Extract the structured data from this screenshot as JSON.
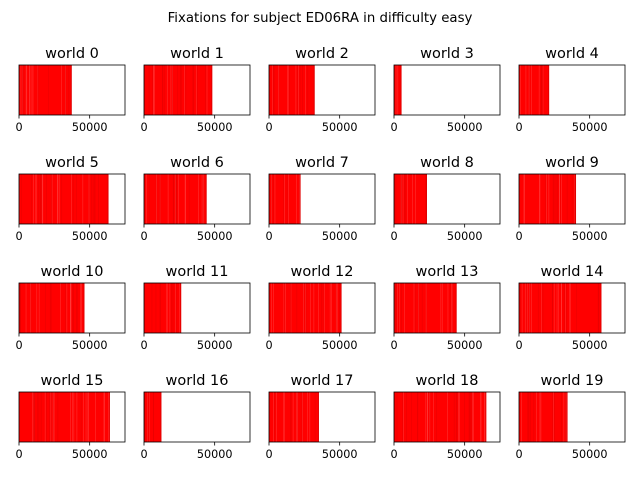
{
  "chart_data": {
    "type": "fixation-strip-grid",
    "title": "Fixations for subject ED06RA in difficulty easy",
    "fill_color": "#ff0000",
    "xlim": [
      0,
      75000
    ],
    "xticks": [
      0,
      50000
    ],
    "xtick_labels": [
      "0",
      "50000"
    ],
    "yticks": "none",
    "panels": [
      {
        "title": "world 0",
        "x_end": 37000
      },
      {
        "title": "world 1",
        "x_end": 48000
      },
      {
        "title": "world 2",
        "x_end": 32000
      },
      {
        "title": "world 3",
        "x_end": 5000
      },
      {
        "title": "world 4",
        "x_end": 21000
      },
      {
        "title": "world 5",
        "x_end": 63000
      },
      {
        "title": "world 6",
        "x_end": 44000
      },
      {
        "title": "world 7",
        "x_end": 22000
      },
      {
        "title": "world 8",
        "x_end": 23000
      },
      {
        "title": "world 9",
        "x_end": 40000
      },
      {
        "title": "world 10",
        "x_end": 46000
      },
      {
        "title": "world 11",
        "x_end": 26000
      },
      {
        "title": "world 12",
        "x_end": 51000
      },
      {
        "title": "world 13",
        "x_end": 44000
      },
      {
        "title": "world 14",
        "x_end": 58000
      },
      {
        "title": "world 15",
        "x_end": 64000
      },
      {
        "title": "world 16",
        "x_end": 12000
      },
      {
        "title": "world 17",
        "x_end": 35000
      },
      {
        "title": "world 18",
        "x_end": 65000
      },
      {
        "title": "world 19",
        "x_end": 34000
      }
    ]
  }
}
